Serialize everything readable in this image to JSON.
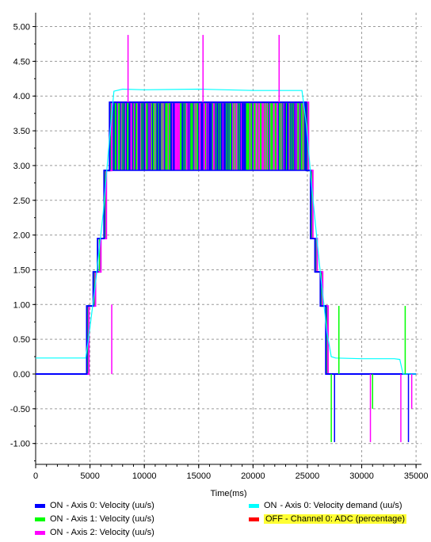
{
  "chart_data": {
    "type": "line",
    "title": "",
    "xlabel": "Time(ms)",
    "ylabel": "",
    "xlim": [
      0,
      35500
    ],
    "ylim": [
      -1.3,
      5.2
    ],
    "x_ticks": [
      "0",
      "5000",
      "10000",
      "15000",
      "20000",
      "25000",
      "30000",
      "35000"
    ],
    "x_tick_values": [
      0,
      5000,
      10000,
      15000,
      20000,
      25000,
      30000,
      35000
    ],
    "y_ticks": [
      "5.00",
      "4.50",
      "4.00",
      "3.50",
      "3.00",
      "2.50",
      "2.00",
      "1.50",
      "1.00",
      "0.50",
      "0.00",
      "-0.50",
      "-1.00"
    ],
    "y_tick_values": [
      5.0,
      4.5,
      4.0,
      3.5,
      3.0,
      2.5,
      2.0,
      1.5,
      1.0,
      0.5,
      0.0,
      -0.5,
      -1.0
    ],
    "grid": true,
    "legend_position": "bottom",
    "series": [
      {
        "name": "Axis 0: Velocity (uu/s)",
        "status": "ON",
        "color": "#0000ff",
        "x": [
          0,
          4700,
          4700,
          5300,
          5300,
          5700,
          5700,
          6300,
          6300,
          6800,
          6800,
          24900,
          24900,
          25300,
          25300,
          25700,
          25700,
          26200,
          26200,
          26700,
          26700,
          27200,
          27200,
          35000
        ],
        "y": [
          0,
          0,
          0.98,
          0.98,
          1.47,
          1.47,
          1.95,
          1.95,
          2.93,
          2.93,
          3.91,
          3.91,
          2.93,
          2.93,
          1.95,
          1.95,
          1.47,
          1.47,
          0.98,
          0.98,
          0,
          0,
          0,
          0
        ]
      },
      {
        "name": "Axis 1: Velocity (uu/s)",
        "status": "ON",
        "color": "#00ff00",
        "x": [
          0,
          4800,
          4800,
          5400,
          5400,
          5900,
          5900,
          6400,
          6400,
          6900,
          6900,
          25000,
          25000,
          25400,
          25400,
          25800,
          25800,
          26300,
          26300,
          26800,
          26800,
          27300,
          27300,
          35000
        ],
        "y": [
          0,
          0,
          0.98,
          0.98,
          1.47,
          1.47,
          1.95,
          1.95,
          2.93,
          2.93,
          3.91,
          3.91,
          2.93,
          2.93,
          1.95,
          1.95,
          1.47,
          1.47,
          0.98,
          0.98,
          0,
          0,
          0,
          0
        ]
      },
      {
        "name": "Axis 2: Velocity (uu/s)",
        "status": "ON",
        "color": "#ff00ff",
        "x": [
          0,
          4900,
          4900,
          5500,
          5500,
          6000,
          6000,
          6500,
          6500,
          7000,
          7000,
          25100,
          25100,
          25500,
          25500,
          25900,
          25900,
          26400,
          26400,
          26900,
          26900,
          27400,
          27400,
          35000
        ],
        "y": [
          0,
          0,
          0.98,
          0.98,
          1.47,
          1.47,
          1.95,
          1.95,
          2.93,
          2.93,
          3.91,
          3.91,
          2.93,
          2.93,
          1.95,
          1.95,
          1.47,
          1.47,
          0.98,
          0.98,
          0,
          0,
          0,
          0
        ]
      },
      {
        "name": "Axis 0: Velocity demand (uu/s)",
        "status": "ON",
        "color": "#00ffff",
        "x": [
          0,
          4600,
          4900,
          5500,
          6200,
          6800,
          7200,
          8000,
          10000,
          15000,
          20000,
          24500,
          24900,
          25400,
          26100,
          26800,
          27200,
          27600,
          30000,
          33000,
          33500,
          33800,
          35000
        ],
        "y": [
          0.23,
          0.23,
          0.55,
          1.3,
          2.3,
          3.4,
          4.07,
          4.1,
          4.09,
          4.1,
          4.08,
          4.08,
          3.6,
          2.7,
          1.6,
          0.6,
          0.25,
          0.23,
          0.22,
          0.22,
          0.21,
          0,
          0
        ]
      },
      {
        "name": "Channel 0: ADC (percentage)",
        "status": "OFF",
        "color": "#ff0000",
        "x": [],
        "y": []
      }
    ],
    "spikes": [
      {
        "series": 2,
        "x": 8500,
        "y": 4.88
      },
      {
        "series": 2,
        "x": 15400,
        "y": 4.88
      },
      {
        "series": 2,
        "x": 22400,
        "y": 4.88
      },
      {
        "series": 2,
        "x": 7000,
        "y": 1.0
      },
      {
        "series": 1,
        "x": 27200,
        "y": -0.98
      },
      {
        "series": 0,
        "x": 27500,
        "y": -0.98
      },
      {
        "series": 1,
        "x": 27900,
        "y": 0.98
      },
      {
        "series": 2,
        "x": 30800,
        "y": -0.98
      },
      {
        "series": 1,
        "x": 31000,
        "y": -0.5
      },
      {
        "series": 2,
        "x": 33600,
        "y": -0.98
      },
      {
        "series": 1,
        "x": 34000,
        "y": 0.98
      },
      {
        "series": 0,
        "x": 34300,
        "y": -0.98
      },
      {
        "series": 2,
        "x": 34600,
        "y": -0.5
      }
    ]
  },
  "legend": [
    {
      "status": "ON",
      "label": " - Axis 0: Velocity (uu/s)",
      "color": "#0000ff",
      "highlight": false
    },
    {
      "status": "ON",
      "label": " - Axis 0: Velocity demand (uu/s)",
      "color": "#00ffff",
      "highlight": false
    },
    {
      "status": "ON",
      "label": " - Axis 1: Velocity (uu/s)",
      "color": "#00ff00",
      "highlight": false
    },
    {
      "status": "OFF",
      "label": " - Channel 0: ADC (percentage)",
      "color": "#ff0000",
      "highlight": true
    },
    {
      "status": "ON",
      "label": " - Axis 2: Velocity (uu/s)",
      "color": "#ff00ff",
      "highlight": false
    }
  ]
}
